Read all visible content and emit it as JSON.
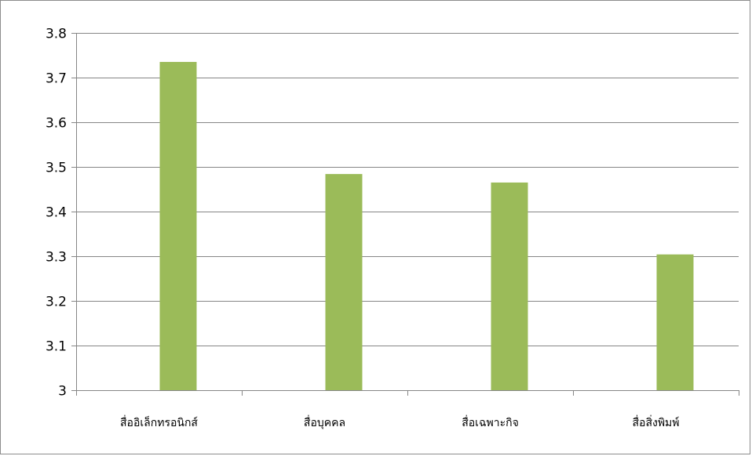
{
  "chart_data": {
    "type": "bar",
    "categories": [
      "สื่ออิเล็กทรอนิกส์",
      "สื่อบุคคล",
      "สื่อเฉพาะกิจ",
      "สื่อสิ่งพิมพ์"
    ],
    "series": [
      {
        "values": [
          3.735,
          3.484,
          3.465,
          3.304
        ],
        "color": "#9bbb59"
      }
    ],
    "title": "",
    "xlabel": "",
    "ylabel": "",
    "ylim": [
      3,
      3.8
    ],
    "yticks": [
      "3",
      "3.1",
      "3.2",
      "3.3",
      "3.4",
      "3.5",
      "3.6",
      "3.7",
      "3.8"
    ],
    "grid": true,
    "legend": "none",
    "gridline_color": "#868686",
    "axis_color": "#868686"
  }
}
